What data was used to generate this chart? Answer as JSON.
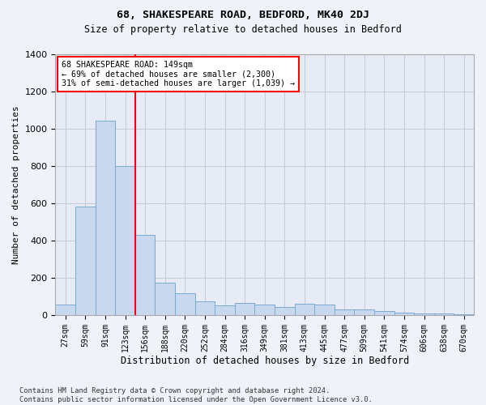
{
  "title": "68, SHAKESPEARE ROAD, BEDFORD, MK40 2DJ",
  "subtitle": "Size of property relative to detached houses in Bedford",
  "xlabel": "Distribution of detached houses by size in Bedford",
  "ylabel": "Number of detached properties",
  "bar_categories": [
    "27sqm",
    "59sqm",
    "91sqm",
    "123sqm",
    "156sqm",
    "188sqm",
    "220sqm",
    "252sqm",
    "284sqm",
    "316sqm",
    "349sqm",
    "381sqm",
    "413sqm",
    "445sqm",
    "477sqm",
    "509sqm",
    "541sqm",
    "574sqm",
    "606sqm",
    "638sqm",
    "670sqm"
  ],
  "bar_values": [
    55,
    580,
    1040,
    800,
    430,
    175,
    115,
    75,
    50,
    65,
    55,
    45,
    60,
    55,
    30,
    30,
    20,
    15,
    10,
    10,
    5
  ],
  "bar_color": "#c8d8ee",
  "bar_edge_color": "#7aaad0",
  "red_line_index": 4,
  "legend_line1": "68 SHAKESPEARE ROAD: 149sqm",
  "legend_line2": "← 69% of detached houses are smaller (2,300)",
  "legend_line3": "31% of semi-detached houses are larger (1,039) →",
  "ylim": [
    0,
    1400
  ],
  "yticks": [
    0,
    200,
    400,
    600,
    800,
    1000,
    1200,
    1400
  ],
  "footer": "Contains HM Land Registry data © Crown copyright and database right 2024.\nContains public sector information licensed under the Open Government Licence v3.0.",
  "bg_color": "#f0f2fa",
  "plot_bg_color": "#e6ebf5",
  "grid_color": "#c8ccd8"
}
